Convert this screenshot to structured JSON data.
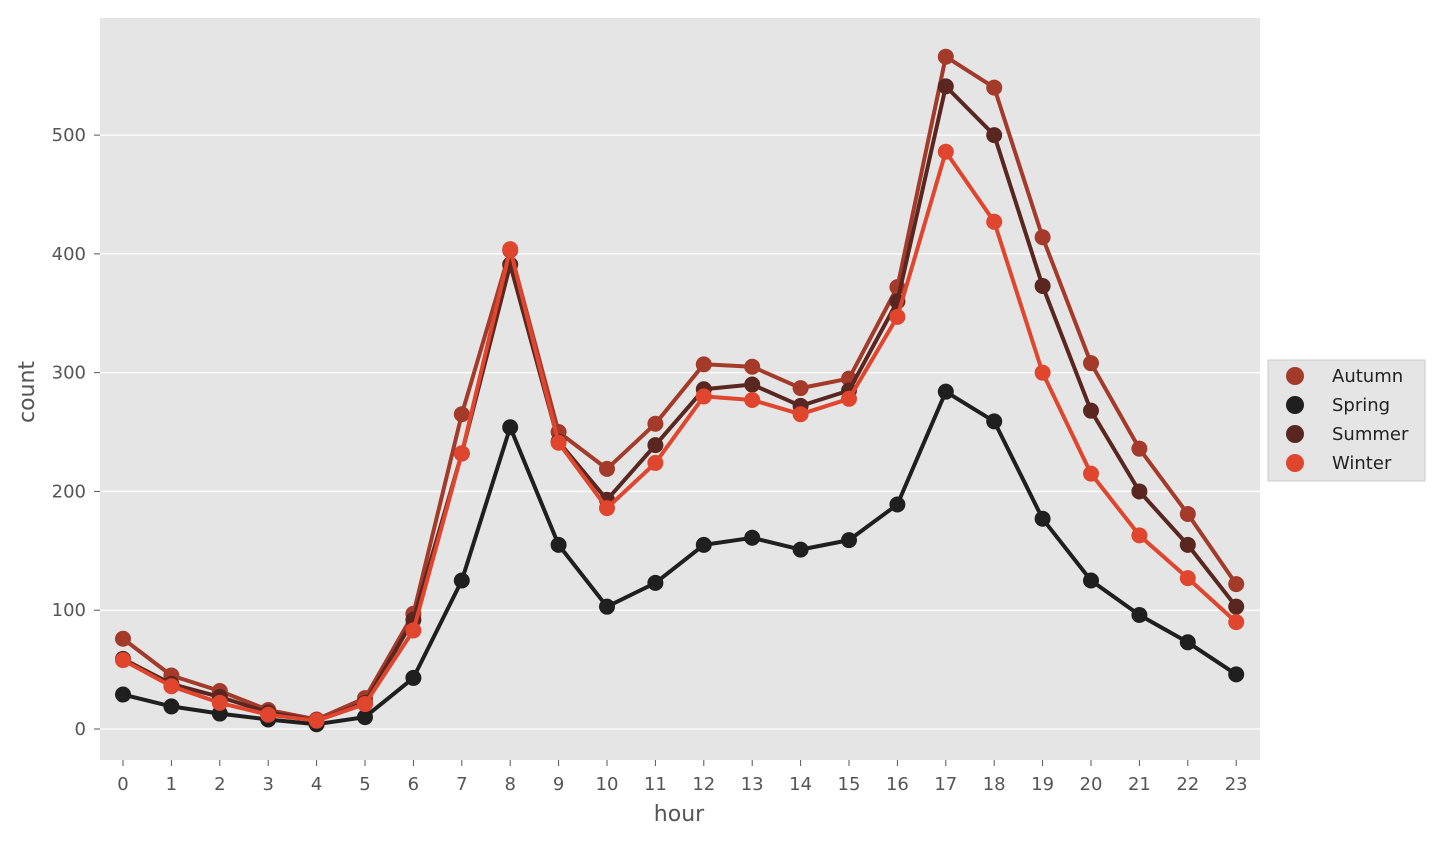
{
  "chart_data": {
    "type": "line",
    "title": "",
    "xlabel": "hour",
    "ylabel": "count",
    "categories": [
      "0",
      "1",
      "2",
      "3",
      "4",
      "5",
      "6",
      "7",
      "8",
      "9",
      "10",
      "11",
      "12",
      "13",
      "14",
      "15",
      "16",
      "17",
      "18",
      "19",
      "20",
      "21",
      "22",
      "23"
    ],
    "yticks": [
      0,
      100,
      200,
      300,
      400,
      500
    ],
    "ylim": [
      -26,
      595
    ],
    "grid": true,
    "legend_position": "right",
    "series": [
      {
        "name": "Autumn",
        "color": "#A33A2A",
        "values": [
          76,
          45,
          32,
          16,
          8,
          26,
          97,
          265,
          403,
          250,
          219,
          257,
          307,
          305,
          287,
          295,
          372,
          566,
          540,
          414,
          308,
          236,
          181,
          122
        ]
      },
      {
        "name": "Spring",
        "color": "#1F1F1F",
        "values": [
          29,
          19,
          13,
          8,
          4,
          10,
          43,
          125,
          254,
          155,
          103,
          123,
          155,
          161,
          151,
          159,
          189,
          284,
          259,
          177,
          125,
          96,
          73,
          46
        ]
      },
      {
        "name": "Summer",
        "color": "#5A2620",
        "values": [
          59,
          38,
          27,
          14,
          7,
          22,
          92,
          232,
          391,
          242,
          193,
          239,
          286,
          290,
          272,
          285,
          360,
          541,
          500,
          373,
          268,
          200,
          155,
          103
        ]
      },
      {
        "name": "Winter",
        "color": "#E0452E",
        "values": [
          58,
          36,
          22,
          12,
          7,
          21,
          83,
          232,
          404,
          241,
          186,
          224,
          280,
          277,
          265,
          278,
          347,
          486,
          427,
          300,
          215,
          163,
          127,
          90
        ]
      }
    ]
  }
}
